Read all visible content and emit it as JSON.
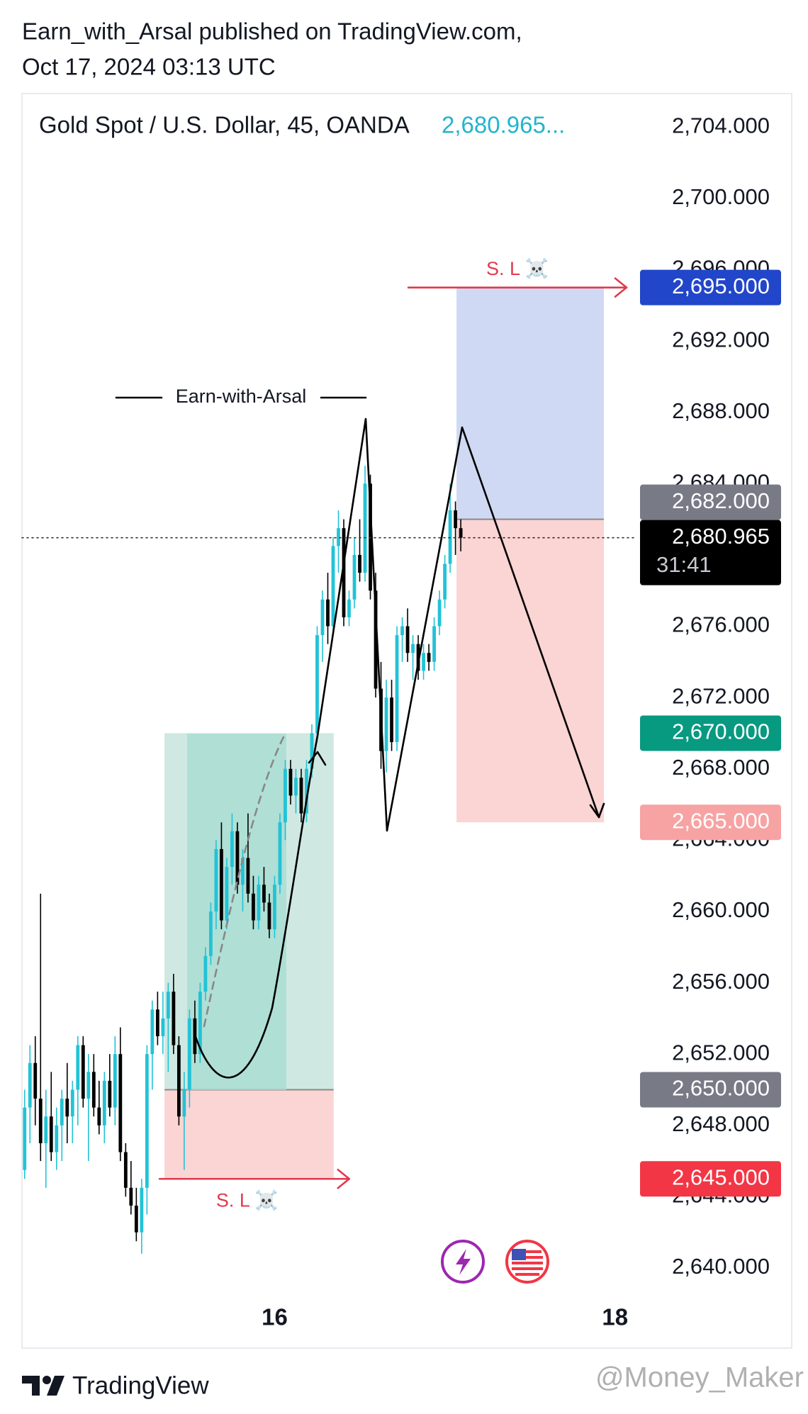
{
  "header": {
    "line1": "Earn_with_Arsal published on TradingView.com,",
    "line2": "Oct 17, 2024 03:13 UTC"
  },
  "chart_data": {
    "type": "candlestick",
    "title": "Gold Spot / U.S. Dollar, 45, OANDA",
    "last_price_text": "2,680.965...",
    "countdown": "31:41",
    "annotation": "Earn-with-Arsal",
    "up_color": "#22c3d6",
    "down_color": "#000000",
    "candles": [
      [
        2645.5,
        2650,
        2645,
        2649
      ],
      [
        2649,
        2652.5,
        2647,
        2651.5
      ],
      [
        2651.5,
        2653,
        2648,
        2649.5
      ],
      [
        2649.5,
        2661,
        2646,
        2647
      ],
      [
        2647,
        2650,
        2644.5,
        2648.5
      ],
      [
        2648.5,
        2651,
        2646,
        2646.5
      ],
      [
        2646.5,
        2649,
        2645.5,
        2648
      ],
      [
        2648,
        2650,
        2646,
        2649.5
      ],
      [
        2649.5,
        2651.5,
        2647,
        2648.5
      ],
      [
        2648.5,
        2650.5,
        2647,
        2650
      ],
      [
        2650,
        2653,
        2648,
        2652.5
      ],
      [
        2652.5,
        2653,
        2649,
        2649.5
      ],
      [
        2649.5,
        2652,
        2646,
        2651
      ],
      [
        2651,
        2652,
        2648.5,
        2649
      ],
      [
        2649,
        2650.5,
        2647.5,
        2648
      ],
      [
        2648,
        2651,
        2647,
        2650.5
      ],
      [
        2650.5,
        2652,
        2648.5,
        2649
      ],
      [
        2649,
        2653,
        2648,
        2652
      ],
      [
        2652,
        2653.5,
        2646,
        2646.5
      ],
      [
        2646.5,
        2647,
        2644,
        2644.5
      ],
      [
        2644.5,
        2646,
        2643,
        2643.5
      ],
      [
        2643.5,
        2644.5,
        2641.5,
        2642
      ],
      [
        2642,
        2645,
        2640.8,
        2644.5
      ],
      [
        2644.5,
        2652.5,
        2643,
        2652
      ],
      [
        2652,
        2655,
        2650,
        2654.5
      ],
      [
        2654.5,
        2655.5,
        2652.5,
        2653
      ],
      [
        2653,
        2655.5,
        2652,
        2654
      ],
      [
        2654,
        2656,
        2651,
        2655.5
      ],
      [
        2655.5,
        2656.5,
        2652,
        2652.5
      ],
      [
        2652.5,
        2653,
        2648,
        2648.5
      ],
      [
        2648.5,
        2651,
        2645.5,
        2650
      ],
      [
        2650,
        2654.5,
        2649,
        2654
      ],
      [
        2654,
        2655,
        2651.5,
        2652
      ],
      [
        2652,
        2656,
        2651.5,
        2655.5
      ],
      [
        2655.5,
        2658,
        2655,
        2657.5
      ],
      [
        2657.5,
        2660.5,
        2657,
        2660
      ],
      [
        2660,
        2664,
        2659,
        2663.5
      ],
      [
        2663.5,
        2665,
        2659,
        2659.5
      ],
      [
        2659.5,
        2663,
        2659,
        2662.5
      ],
      [
        2662.5,
        2665.5,
        2661.5,
        2664.5
      ],
      [
        2664.5,
        2665,
        2661,
        2661.5
      ],
      [
        2661.5,
        2663.5,
        2660,
        2663
      ],
      [
        2663,
        2665.5,
        2660.5,
        2661
      ],
      [
        2661,
        2662,
        2659,
        2659.5
      ],
      [
        2659.5,
        2662,
        2659,
        2661.5
      ],
      [
        2661.5,
        2662.5,
        2660,
        2660.5
      ],
      [
        2660.5,
        2661,
        2658.5,
        2659
      ],
      [
        2659,
        2662,
        2658.5,
        2661.5
      ],
      [
        2661.5,
        2665.5,
        2661,
        2665
      ],
      [
        2665,
        2668.5,
        2664,
        2668
      ],
      [
        2668,
        2668.5,
        2666,
        2666.5
      ],
      [
        2666.5,
        2668,
        2665.5,
        2667.5
      ],
      [
        2667.5,
        2668,
        2665,
        2665.5
      ],
      [
        2665.5,
        2668.5,
        2665,
        2668
      ],
      [
        2668,
        2670.5,
        2667.5,
        2670
      ],
      [
        2670,
        2676,
        2669.5,
        2675.5
      ],
      [
        2675.5,
        2678,
        2674,
        2677.5
      ],
      [
        2677.5,
        2679,
        2675,
        2676
      ],
      [
        2676,
        2681,
        2675.5,
        2680.5
      ],
      [
        2680.5,
        2682.5,
        2679,
        2681.5
      ],
      [
        2681.5,
        2682,
        2676,
        2676.5
      ],
      [
        2676.5,
        2678,
        2676,
        2677.5
      ],
      [
        2677.5,
        2681,
        2677,
        2680
      ],
      [
        2680,
        2682,
        2678.5,
        2679
      ],
      [
        2679,
        2685,
        2678.5,
        2684
      ],
      [
        2684,
        2684.5,
        2677.5,
        2678
      ],
      [
        2678,
        2679,
        2672,
        2672.5
      ],
      [
        2672.5,
        2674,
        2668,
        2669
      ],
      [
        2669,
        2673,
        2667.8,
        2672
      ],
      [
        2672,
        2673,
        2669,
        2669.5
      ],
      [
        2669.5,
        2676,
        2669,
        2675.5
      ],
      [
        2675.5,
        2676.5,
        2674,
        2676
      ],
      [
        2676,
        2677,
        2674,
        2674.5
      ],
      [
        2674.5,
        2675.5,
        2673,
        2675
      ],
      [
        2675,
        2675.5,
        2673,
        2673.5
      ],
      [
        2673.5,
        2675,
        2673,
        2674.5
      ],
      [
        2674.5,
        2675,
        2673.5,
        2674
      ],
      [
        2674,
        2676.5,
        2673.5,
        2676
      ],
      [
        2676,
        2678,
        2675.5,
        2677.5
      ],
      [
        2677.5,
        2680,
        2677,
        2679.5
      ],
      [
        2679.5,
        2684,
        2679,
        2682.5
      ],
      [
        2682.5,
        2683,
        2680,
        2681.5
      ],
      [
        2681.5,
        2682,
        2680.2,
        2680.965
      ]
    ],
    "xlim": [
      -0.5,
      114.9
    ],
    "xticks": [
      {
        "value": 47,
        "label": "16"
      },
      {
        "value": 111,
        "label": "18"
      }
    ],
    "ylim": [
      2638.37,
      2705.88
    ],
    "yticks": [
      {
        "value": 2640,
        "label": "2,640.000"
      },
      {
        "value": 2644,
        "label": "2,644.000"
      },
      {
        "value": 2648,
        "label": "2,648.000"
      },
      {
        "value": 2652,
        "label": "2,652.000"
      },
      {
        "value": 2656,
        "label": "2,656.000"
      },
      {
        "value": 2660,
        "label": "2,660.000"
      },
      {
        "value": 2664,
        "label": "2,664.000"
      },
      {
        "value": 2668,
        "label": "2,668.000"
      },
      {
        "value": 2672,
        "label": "2,672.000"
      },
      {
        "value": 2676,
        "label": "2,676.000"
      },
      {
        "value": 2680,
        "label": "2,680.000"
      },
      {
        "value": 2684,
        "label": "2,684.000"
      },
      {
        "value": 2688,
        "label": "2,688.000"
      },
      {
        "value": 2692,
        "label": "2,692.000"
      },
      {
        "value": 2696,
        "label": "2,696.000"
      },
      {
        "value": 2700,
        "label": "2,700.000"
      },
      {
        "value": 2704,
        "label": "2,704.000"
      }
    ],
    "price_labels": [
      {
        "value": 2695,
        "label": "2,695.000",
        "color": "#2146c9"
      },
      {
        "value": 2682,
        "label": "2,682.000",
        "color": "#787b86"
      },
      {
        "value": 2680.965,
        "label": "2,680.965",
        "color": "#000000"
      },
      {
        "value": 2670,
        "label": "2,670.000",
        "color": "#089981"
      },
      {
        "value": 2665,
        "label": "2,665.000",
        "color": "#f7a3a3"
      },
      {
        "value": 2650,
        "label": "2,650.000",
        "color": "#787b86"
      },
      {
        "value": 2645,
        "label": "2,645.000",
        "color": "#f23645"
      }
    ],
    "positions": [
      {
        "x_from": 81.2,
        "x_to": 108.9,
        "entry": 2682,
        "stop": 2695,
        "target": 2665,
        "label": "S. L ☠️",
        "stop_color": "#d0d9f3",
        "target_color": "#fbd4d4"
      },
      {
        "x_from": 26.3,
        "x_to": 58.1,
        "entry": 2650,
        "stop": 2645,
        "target": 2670,
        "label": "S. L ☠️",
        "stop_color": "#fbd4d4",
        "target_color": "#cfe9e2"
      }
    ]
  },
  "footer": {
    "brand": "TradingView",
    "watermark": "@Money_Maker"
  }
}
